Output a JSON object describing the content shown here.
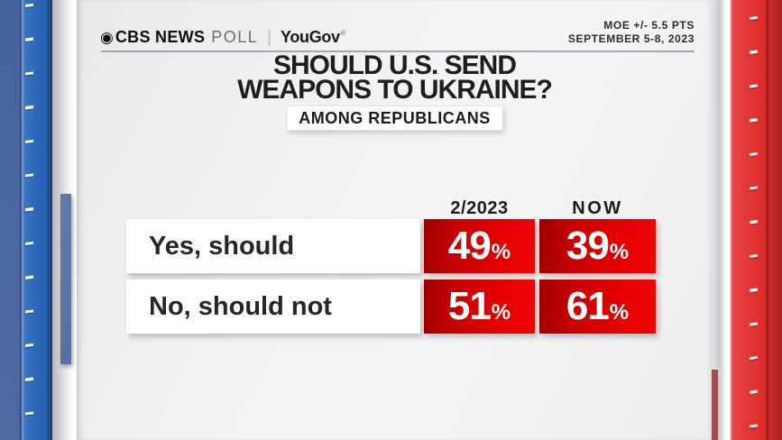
{
  "header": {
    "eye_icon": "◉",
    "brand": "CBS NEWS",
    "brand_suffix": "POLL",
    "separator": "|",
    "partner": "YouGov",
    "partner_mark": "®",
    "moe": "MOE +/- 5.5 PTS",
    "dates": "SEPTEMBER 5-8, 2023"
  },
  "title": {
    "line1": "SHOULD U.S. SEND",
    "line2": "WEAPONS TO UKRAINE?"
  },
  "subtitle_badge": "AMONG REPUBLICANS",
  "chart_data": {
    "type": "table",
    "title": "SHOULD U.S. SEND WEAPONS TO UKRAINE?",
    "subtitle": "AMONG REPUBLICANS",
    "source": "CBS NEWS POLL | YouGov",
    "margin_of_error": "MOE +/- 5.5 PTS",
    "field_dates": "SEPTEMBER 5-8, 2023",
    "columns": [
      "2/2023",
      "NOW"
    ],
    "unit": "%",
    "rows": [
      {
        "label": "Yes, should",
        "values": [
          49,
          39
        ]
      },
      {
        "label": "No, should not",
        "values": [
          51,
          61
        ]
      }
    ]
  },
  "colors": {
    "cell_red_bright": "#e60000",
    "cell_red_dark": "#9e0000",
    "side_blue": "#2b68b7",
    "side_red": "#e23434",
    "panel_bg": "#f3f3f5",
    "text_dark": "#1e1e1e"
  }
}
